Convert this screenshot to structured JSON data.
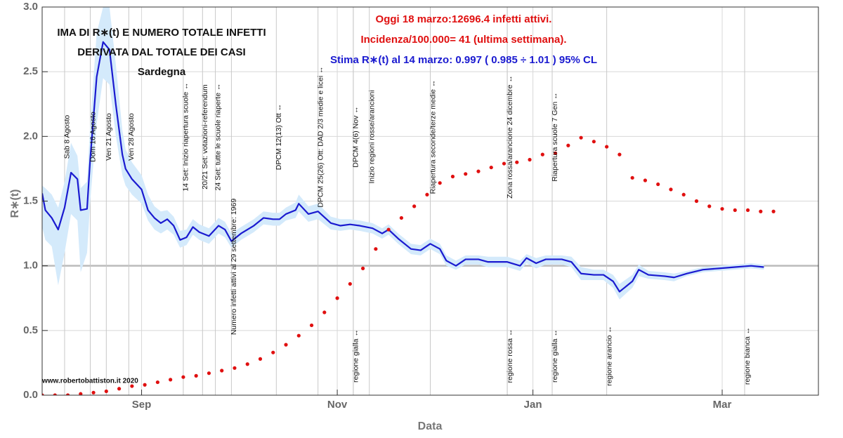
{
  "chart_data": {
    "type": "line",
    "title_lines": [
      "IMA DI R∗(t) E NUMERO TOTALE INFETTI",
      "DERIVATA DAL TOTALE DEI CASI",
      "Sardegna"
    ],
    "info_lines": [
      {
        "text": "Oggi 18 marzo:12696.4 infetti attivi.",
        "color": "#e01010"
      },
      {
        "text": "Incidenza/100.000= 41 (ultima settimana).",
        "color": "#e01010"
      },
      {
        "text": "Stima R∗(t) al 14 marzo: 0.997 ( 0.985 ÷ 1.01 ) 95% CL",
        "color": "#1a1ad0"
      }
    ],
    "watermark": "www.robertobattiston.it 2020",
    "x_label": "Data",
    "y_label": "R∗(t)",
    "xlim": [
      0,
      242
    ],
    "xticks": [
      {
        "value": 31,
        "label": "Sep"
      },
      {
        "value": 92,
        "label": "Nov"
      },
      {
        "value": 153,
        "label": "Jan"
      },
      {
        "value": 212,
        "label": "Mar"
      }
    ],
    "ylim": [
      0,
      3
    ],
    "yticks": [
      {
        "value": 0,
        "label": "0.0"
      },
      0.5,
      {
        "value": 1,
        "label": "1.0"
      },
      1.5,
      {
        "value": 2,
        "label": "2.0"
      },
      2.5,
      {
        "value": 3,
        "label": "3.0"
      }
    ],
    "grid": true,
    "reference_line": 1,
    "series": [
      {
        "style": "line",
        "color": "#1a1ad0",
        "band_color": "#d4eafb",
        "x": [
          0,
          1,
          3,
          5,
          7,
          9,
          11,
          12,
          14,
          15,
          17,
          19,
          21,
          23,
          25,
          26,
          28,
          31,
          33,
          35,
          37,
          39,
          41,
          43,
          45,
          47,
          49,
          52,
          55,
          57,
          59,
          62,
          66,
          69,
          72,
          74,
          76,
          79,
          80,
          83,
          86,
          90,
          93,
          96,
          99,
          103,
          106,
          108,
          111,
          115,
          118,
          121,
          124,
          126,
          129,
          132,
          136,
          139,
          142,
          145,
          149,
          151,
          154,
          157,
          162,
          165,
          168,
          172,
          175,
          178,
          180,
          184,
          186,
          189,
          194,
          197,
          201,
          206,
          211,
          216,
          221,
          225
        ],
        "values": [
          1.56,
          1.43,
          1.37,
          1.28,
          1.45,
          1.72,
          1.67,
          1.43,
          1.44,
          1.83,
          2.46,
          2.73,
          2.67,
          2.24,
          1.86,
          1.75,
          1.67,
          1.59,
          1.43,
          1.37,
          1.33,
          1.36,
          1.31,
          1.2,
          1.22,
          1.3,
          1.26,
          1.23,
          1.31,
          1.28,
          1.19,
          1.25,
          1.31,
          1.37,
          1.36,
          1.36,
          1.4,
          1.43,
          1.48,
          1.4,
          1.42,
          1.33,
          1.31,
          1.32,
          1.31,
          1.29,
          1.25,
          1.28,
          1.21,
          1.13,
          1.12,
          1.17,
          1.13,
          1.04,
          1.0,
          1.05,
          1.05,
          1.03,
          1.03,
          1.03,
          1.0,
          1.06,
          1.02,
          1.05,
          1.05,
          1.03,
          0.94,
          0.93,
          0.93,
          0.88,
          0.8,
          0.88,
          0.97,
          0.93,
          0.92,
          0.91,
          0.94,
          0.97,
          0.98,
          0.99,
          1.0,
          0.99
        ],
        "band_low": [
          1.3,
          1.2,
          1.15,
          0.85,
          1.1,
          1.4,
          1.35,
          0.95,
          1.1,
          1.5,
          2.1,
          2.45,
          2.4,
          2.0,
          1.7,
          1.62,
          1.55,
          1.48,
          1.35,
          1.28,
          1.25,
          1.28,
          1.24,
          1.14,
          1.16,
          1.24,
          1.2,
          1.17,
          1.25,
          1.22,
          1.14,
          1.2,
          1.26,
          1.32,
          1.31,
          1.31,
          1.35,
          1.37,
          1.42,
          1.34,
          1.36,
          1.28,
          1.27,
          1.28,
          1.27,
          1.25,
          1.21,
          1.24,
          1.17,
          1.09,
          1.08,
          1.13,
          1.09,
          1.0,
          0.97,
          1.01,
          1.01,
          0.99,
          0.99,
          0.99,
          0.96,
          1.02,
          0.98,
          1.01,
          1.01,
          0.99,
          0.89,
          0.89,
          0.89,
          0.83,
          0.74,
          0.83,
          0.92,
          0.9,
          0.89,
          0.88,
          0.92,
          0.95,
          0.96,
          0.97,
          0.98,
          0.97
        ],
        "band_high": [
          1.62,
          1.6,
          1.55,
          1.45,
          1.65,
          1.95,
          1.85,
          1.6,
          1.65,
          2.1,
          2.8,
          3.0,
          3.0,
          2.55,
          2.05,
          1.9,
          1.8,
          1.7,
          1.55,
          1.46,
          1.42,
          1.43,
          1.38,
          1.27,
          1.28,
          1.36,
          1.32,
          1.29,
          1.37,
          1.34,
          1.25,
          1.3,
          1.36,
          1.42,
          1.41,
          1.41,
          1.45,
          1.49,
          1.55,
          1.46,
          1.48,
          1.38,
          1.36,
          1.36,
          1.35,
          1.33,
          1.29,
          1.32,
          1.25,
          1.17,
          1.16,
          1.21,
          1.17,
          1.08,
          1.04,
          1.08,
          1.08,
          1.07,
          1.07,
          1.07,
          1.04,
          1.09,
          1.06,
          1.08,
          1.08,
          1.07,
          0.99,
          0.97,
          0.97,
          0.93,
          0.86,
          0.93,
          1.01,
          0.96,
          0.95,
          0.94,
          0.96,
          0.99,
          1.0,
          1.01,
          1.02,
          1.01
        ]
      },
      {
        "style": "dots",
        "color": "#e01010",
        "x": [
          0,
          4,
          8,
          12,
          16,
          20,
          24,
          28,
          32,
          36,
          40,
          44,
          48,
          52,
          56,
          60,
          64,
          68,
          72,
          76,
          80,
          84,
          88,
          92,
          96,
          100,
          104,
          108,
          112,
          116,
          120,
          124,
          128,
          132,
          136,
          140,
          144,
          148,
          152,
          156,
          160,
          164,
          168,
          172,
          176,
          180,
          184,
          188,
          192,
          196,
          200,
          204,
          208,
          212,
          216,
          220,
          224,
          228
        ],
        "values": [
          0,
          0,
          0,
          0.01,
          0.02,
          0.03,
          0.05,
          0.07,
          0.08,
          0.1,
          0.12,
          0.14,
          0.15,
          0.17,
          0.19,
          0.21,
          0.24,
          0.28,
          0.33,
          0.39,
          0.46,
          0.54,
          0.64,
          0.75,
          0.86,
          0.98,
          1.13,
          1.28,
          1.37,
          1.46,
          1.55,
          1.64,
          1.69,
          1.71,
          1.73,
          1.76,
          1.79,
          1.8,
          1.82,
          1.86,
          1.87,
          1.93,
          1.99,
          1.96,
          1.92,
          1.86,
          1.68,
          1.66,
          1.63,
          1.59,
          1.55,
          1.5,
          1.46,
          1.44,
          1.43,
          1.43,
          1.42,
          1.42
        ]
      }
    ],
    "events_top": [
      {
        "x": 7,
        "label": "Sab 8 Agosto"
      },
      {
        "x": 15,
        "label": "Dom 16 Agosto"
      },
      {
        "x": 20,
        "label": "Ven 21 Agosto"
      },
      {
        "x": 27,
        "label": "Ven 28 Agosto"
      },
      {
        "x": 44,
        "label": "14 Set: Inizio riapertura scuole ↔"
      },
      {
        "x": 50,
        "label": "20/21 Set: votazioni-referendum"
      },
      {
        "x": 54,
        "label": "24 Set: tutte le scuole riaperte ↔"
      },
      {
        "x": 73,
        "label": "DPCM 12(13) Ott ↔"
      },
      {
        "x": 86,
        "label": "DPCM 25(26) Ott: DAD 2/3 medie e licei ↔"
      },
      {
        "x": 97,
        "label": "DPCM 4(6) Nov ↔"
      },
      {
        "x": 102,
        "label": "Inizio regioni rosse/arancioni"
      },
      {
        "x": 121,
        "label": "Riapertura seconde/terze medie ↔"
      },
      {
        "x": 145,
        "label": "Zona rossa/arancione 24 dicembre ↔"
      },
      {
        "x": 159,
        "label": "Riapertura scuole 7 Gen ↔"
      }
    ],
    "events_bottom": [
      {
        "x": 97,
        "label": "regione gialla ↔"
      },
      {
        "x": 145,
        "label": "regione rossa ↔"
      },
      {
        "x": 159,
        "label": "regione gialla ↔"
      },
      {
        "x": 176,
        "label": "regione arancio ↔"
      },
      {
        "x": 219,
        "label": "regione bianca ↔"
      }
    ],
    "note_event": {
      "x": 59,
      "label": "Numero infetti attivi al 29 settembre: 1969",
      "color": "#e01010"
    }
  }
}
